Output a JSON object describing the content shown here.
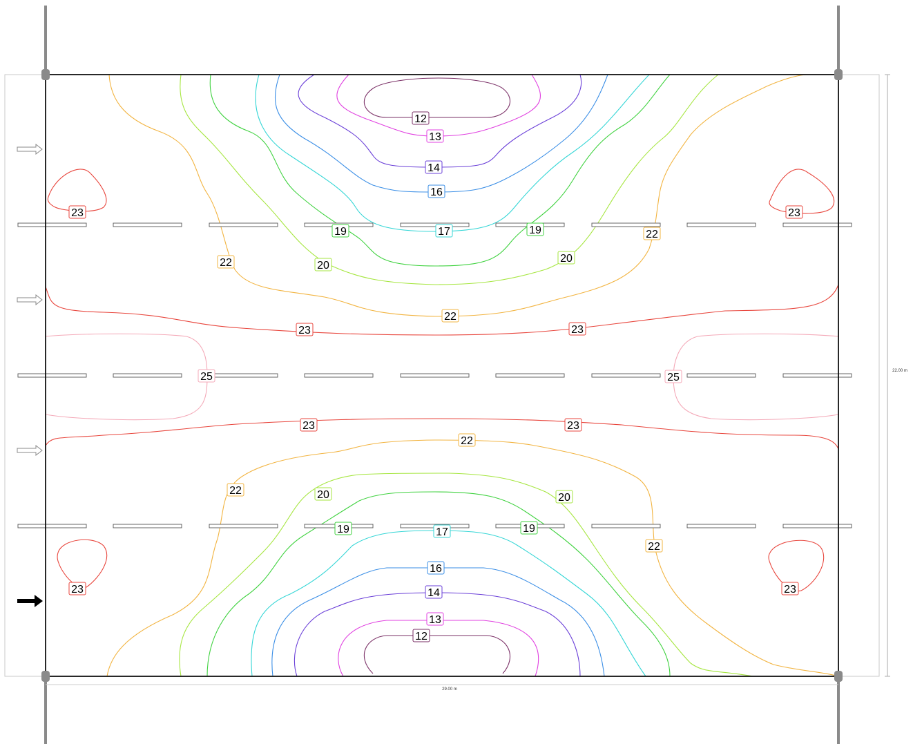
{
  "plan": {
    "width_label": "29.00 m",
    "height_label": "22.00 m"
  },
  "isolines": [
    {
      "value": 12,
      "color": "#7a2f66"
    },
    {
      "value": 13,
      "color": "#e040e0"
    },
    {
      "value": 14,
      "color": "#6a3fd8"
    },
    {
      "value": 16,
      "color": "#3a8ee6"
    },
    {
      "value": 17,
      "color": "#35d6d6"
    },
    {
      "value": 19,
      "color": "#3fd23f"
    },
    {
      "value": 20,
      "color": "#a6e640"
    },
    {
      "value": 22,
      "color": "#f2b441"
    },
    {
      "value": 23,
      "color": "#e8453c"
    },
    {
      "value": 25,
      "color": "#f4a9b8"
    }
  ],
  "labels": {
    "l12a": "12",
    "l13a": "13",
    "l14a": "14",
    "l16a": "16",
    "l17a": "17",
    "l19a": "19",
    "l19b": "19",
    "l20a": "20",
    "l20b": "20",
    "l22a": "22",
    "l22b": "22",
    "l22c": "22",
    "l23a": "23",
    "l23b": "23",
    "l23c": "23",
    "l23d": "23",
    "l25a": "25",
    "l25b": "25",
    "l23e": "23",
    "l23f": "23",
    "l22d": "22",
    "l20c": "20",
    "l20d": "20",
    "l22e": "22",
    "l22f": "22",
    "l19c": "19",
    "l19d": "19",
    "l17b": "17",
    "l16b": "16",
    "l14b": "14",
    "l13b": "13",
    "l12b": "12",
    "l23g": "23",
    "l23h": "23"
  }
}
